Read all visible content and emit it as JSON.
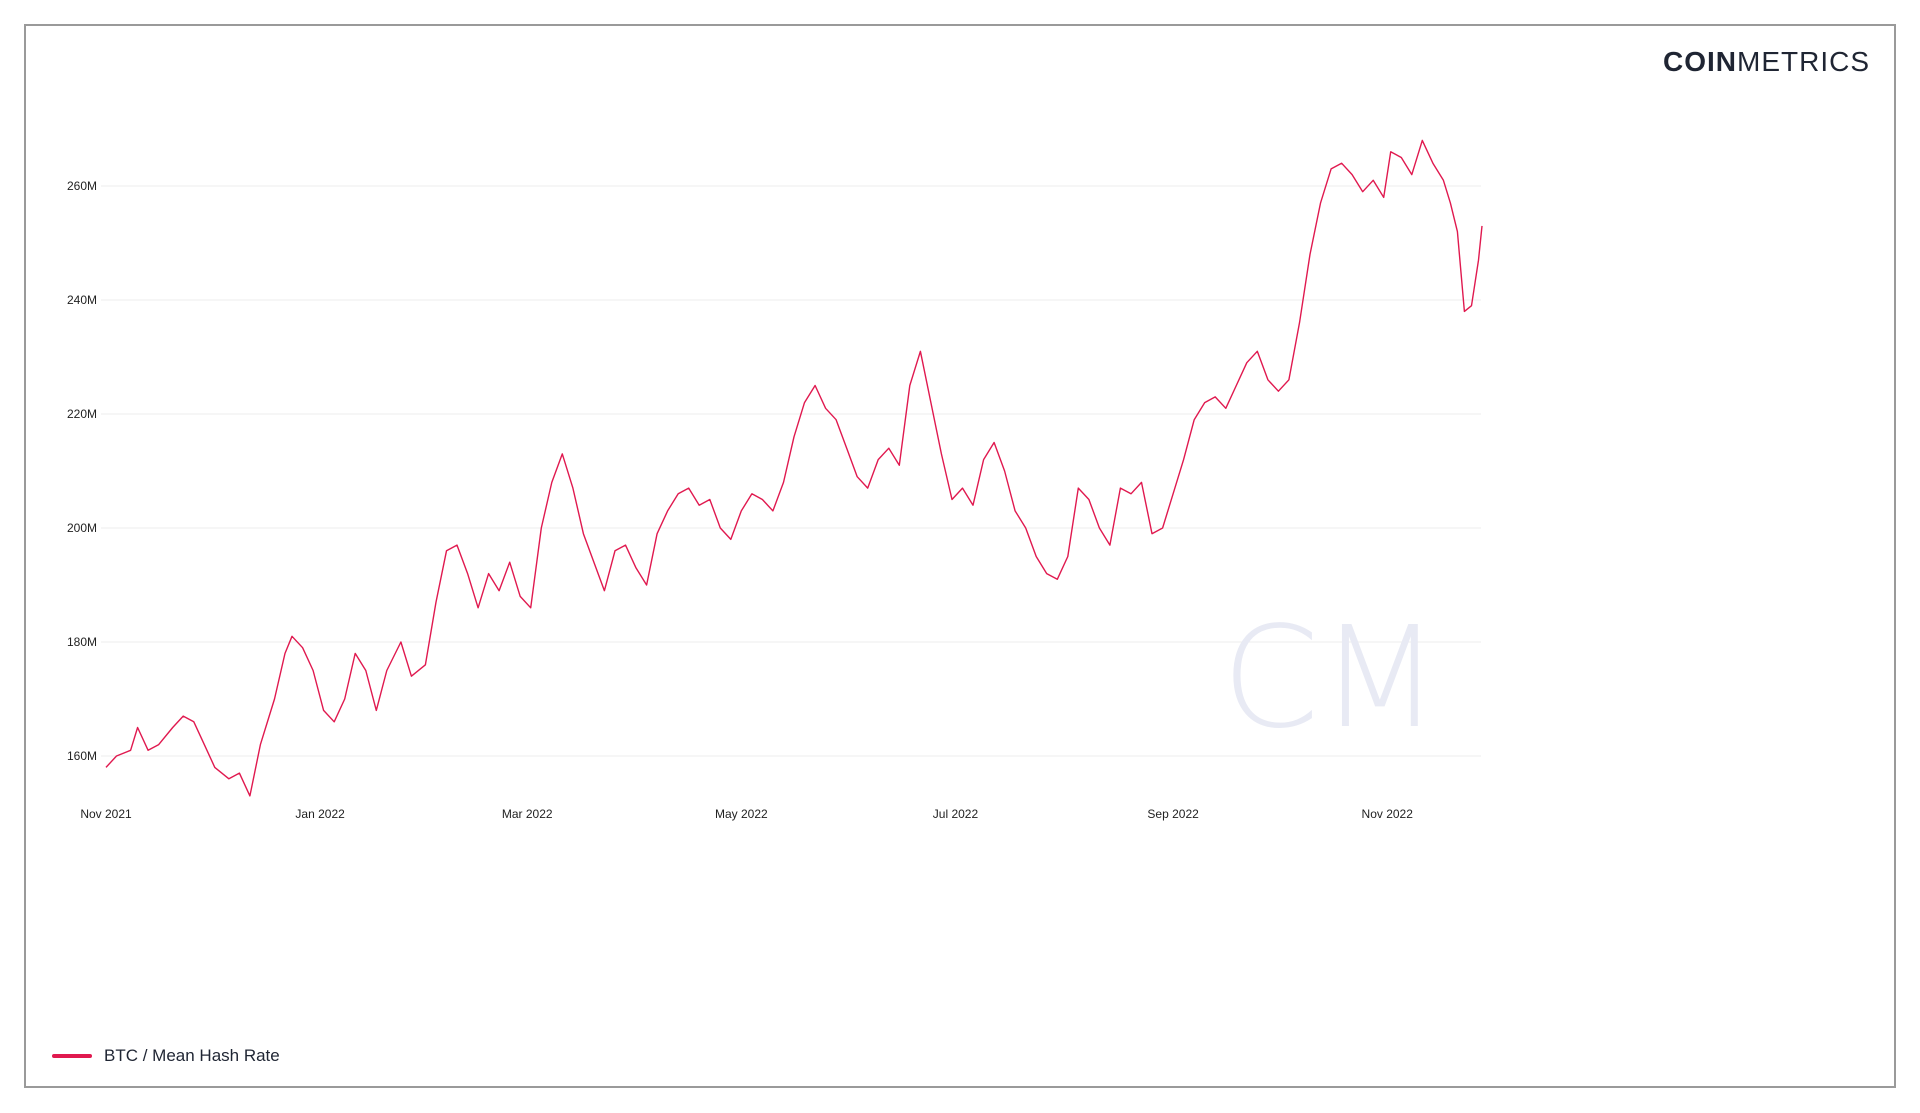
{
  "logo": {
    "bold": "COIN",
    "normal": "METRICS"
  },
  "watermark": {
    "text": "CM"
  },
  "legend": {
    "label": "BTC / Mean Hash Rate",
    "color": "#e0194f"
  },
  "chart_data": {
    "type": "line",
    "title": "",
    "xlabel": "",
    "ylabel": "",
    "x_start": "2021-11-01",
    "x_end": "2022-11-28",
    "ylim": [
      153,
      275
    ],
    "yticks": [
      160,
      180,
      200,
      220,
      240,
      260
    ],
    "ytick_labels": [
      "160M",
      "180M",
      "200M",
      "220M",
      "240M",
      "260M"
    ],
    "xtick_labels": [
      "Nov 2021",
      "Jan 2022",
      "Mar 2022",
      "May 2022",
      "Jul 2022",
      "Sep 2022",
      "Nov 2022"
    ],
    "xtick_dates": [
      "2021-11-01",
      "2022-01-01",
      "2022-03-01",
      "2022-05-01",
      "2022-07-01",
      "2022-09-01",
      "2022-11-01"
    ],
    "grid": true,
    "legend_position": "bottom-left",
    "series": [
      {
        "name": "BTC / Mean Hash Rate",
        "color": "#e0194f",
        "points": [
          [
            "2021-11-01",
            158
          ],
          [
            "2021-11-04",
            160
          ],
          [
            "2021-11-08",
            161
          ],
          [
            "2021-11-10",
            165
          ],
          [
            "2021-11-13",
            161
          ],
          [
            "2021-11-16",
            162
          ],
          [
            "2021-11-20",
            165
          ],
          [
            "2021-11-23",
            167
          ],
          [
            "2021-11-26",
            166
          ],
          [
            "2021-11-29",
            162
          ],
          [
            "2021-12-02",
            158
          ],
          [
            "2021-12-06",
            156
          ],
          [
            "2021-12-09",
            157
          ],
          [
            "2021-12-12",
            153
          ],
          [
            "2021-12-15",
            162
          ],
          [
            "2021-12-19",
            170
          ],
          [
            "2021-12-22",
            178
          ],
          [
            "2021-12-24",
            181
          ],
          [
            "2021-12-27",
            179
          ],
          [
            "2021-12-30",
            175
          ],
          [
            "2022-01-02",
            168
          ],
          [
            "2022-01-05",
            166
          ],
          [
            "2022-01-08",
            170
          ],
          [
            "2022-01-11",
            178
          ],
          [
            "2022-01-14",
            175
          ],
          [
            "2022-01-17",
            168
          ],
          [
            "2022-01-20",
            175
          ],
          [
            "2022-01-24",
            180
          ],
          [
            "2022-01-27",
            174
          ],
          [
            "2022-01-31",
            176
          ],
          [
            "2022-02-03",
            187
          ],
          [
            "2022-02-06",
            196
          ],
          [
            "2022-02-09",
            197
          ],
          [
            "2022-02-12",
            192
          ],
          [
            "2022-02-15",
            186
          ],
          [
            "2022-02-18",
            192
          ],
          [
            "2022-02-21",
            189
          ],
          [
            "2022-02-24",
            194
          ],
          [
            "2022-02-27",
            188
          ],
          [
            "2022-03-02",
            186
          ],
          [
            "2022-03-05",
            200
          ],
          [
            "2022-03-08",
            208
          ],
          [
            "2022-03-11",
            213
          ],
          [
            "2022-03-14",
            207
          ],
          [
            "2022-03-17",
            199
          ],
          [
            "2022-03-20",
            194
          ],
          [
            "2022-03-23",
            189
          ],
          [
            "2022-03-26",
            196
          ],
          [
            "2022-03-29",
            197
          ],
          [
            "2022-04-01",
            193
          ],
          [
            "2022-04-04",
            190
          ],
          [
            "2022-04-07",
            199
          ],
          [
            "2022-04-10",
            203
          ],
          [
            "2022-04-13",
            206
          ],
          [
            "2022-04-16",
            207
          ],
          [
            "2022-04-19",
            204
          ],
          [
            "2022-04-22",
            205
          ],
          [
            "2022-04-25",
            200
          ],
          [
            "2022-04-28",
            198
          ],
          [
            "2022-05-01",
            203
          ],
          [
            "2022-05-04",
            206
          ],
          [
            "2022-05-07",
            205
          ],
          [
            "2022-05-10",
            203
          ],
          [
            "2022-05-13",
            208
          ],
          [
            "2022-05-16",
            216
          ],
          [
            "2022-05-19",
            222
          ],
          [
            "2022-05-22",
            225
          ],
          [
            "2022-05-25",
            221
          ],
          [
            "2022-05-28",
            219
          ],
          [
            "2022-05-31",
            214
          ],
          [
            "2022-06-03",
            209
          ],
          [
            "2022-06-06",
            207
          ],
          [
            "2022-06-09",
            212
          ],
          [
            "2022-06-12",
            214
          ],
          [
            "2022-06-15",
            211
          ],
          [
            "2022-06-18",
            225
          ],
          [
            "2022-06-21",
            231
          ],
          [
            "2022-06-24",
            222
          ],
          [
            "2022-06-27",
            213
          ],
          [
            "2022-06-30",
            205
          ],
          [
            "2022-07-03",
            207
          ],
          [
            "2022-07-06",
            204
          ],
          [
            "2022-07-09",
            212
          ],
          [
            "2022-07-12",
            215
          ],
          [
            "2022-07-15",
            210
          ],
          [
            "2022-07-18",
            203
          ],
          [
            "2022-07-21",
            200
          ],
          [
            "2022-07-24",
            195
          ],
          [
            "2022-07-27",
            192
          ],
          [
            "2022-07-30",
            191
          ],
          [
            "2022-08-02",
            195
          ],
          [
            "2022-08-05",
            207
          ],
          [
            "2022-08-08",
            205
          ],
          [
            "2022-08-11",
            200
          ],
          [
            "2022-08-14",
            197
          ],
          [
            "2022-08-17",
            207
          ],
          [
            "2022-08-20",
            206
          ],
          [
            "2022-08-23",
            208
          ],
          [
            "2022-08-26",
            199
          ],
          [
            "2022-08-29",
            200
          ],
          [
            "2022-09-01",
            206
          ],
          [
            "2022-09-04",
            212
          ],
          [
            "2022-09-07",
            219
          ],
          [
            "2022-09-10",
            222
          ],
          [
            "2022-09-13",
            223
          ],
          [
            "2022-09-16",
            221
          ],
          [
            "2022-09-19",
            225
          ],
          [
            "2022-09-22",
            229
          ],
          [
            "2022-09-25",
            231
          ],
          [
            "2022-09-28",
            226
          ],
          [
            "2022-10-01",
            224
          ],
          [
            "2022-10-04",
            226
          ],
          [
            "2022-10-07",
            236
          ],
          [
            "2022-10-10",
            248
          ],
          [
            "2022-10-13",
            257
          ],
          [
            "2022-10-16",
            263
          ],
          [
            "2022-10-19",
            264
          ],
          [
            "2022-10-22",
            262
          ],
          [
            "2022-10-25",
            259
          ],
          [
            "2022-10-28",
            261
          ],
          [
            "2022-10-31",
            258
          ],
          [
            "2022-11-02",
            266
          ],
          [
            "2022-11-05",
            265
          ],
          [
            "2022-11-08",
            262
          ],
          [
            "2022-11-11",
            268
          ],
          [
            "2022-11-14",
            264
          ],
          [
            "2022-11-17",
            261
          ],
          [
            "2022-11-19",
            257
          ],
          [
            "2022-11-21",
            252
          ],
          [
            "2022-11-23",
            238
          ],
          [
            "2022-11-25",
            239
          ],
          [
            "2022-11-27",
            247
          ],
          [
            "2022-11-28",
            253
          ]
        ]
      }
    ]
  }
}
